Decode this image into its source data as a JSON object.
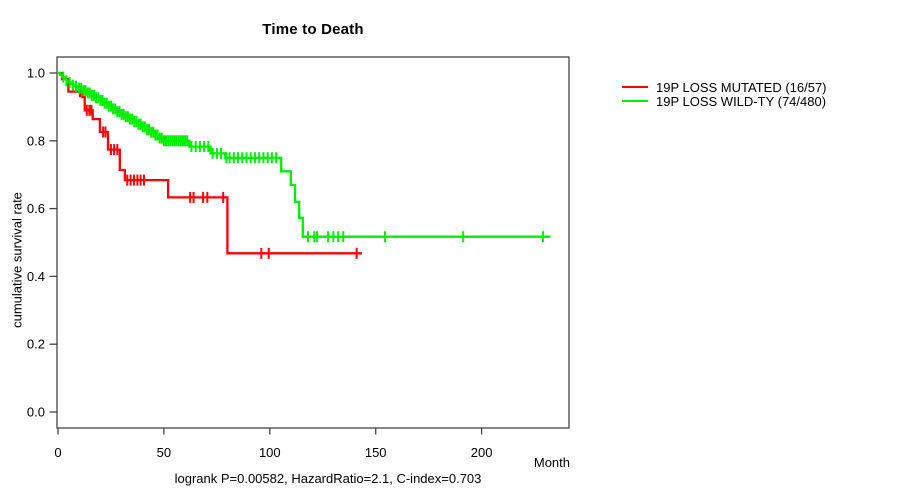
{
  "chart_data": {
    "type": "line",
    "subtype": "kaplan-meier-step",
    "title": "Time to Death",
    "xlabel": "Month",
    "ylabel": "cumulative survival rate",
    "annotation": "logrank P=0.00582, HazardRatio=2.1, C-index=0.703",
    "xlim": [
      0,
      240
    ],
    "ylim": [
      0.0,
      1.0
    ],
    "xticks": [
      0,
      50,
      100,
      150,
      200
    ],
    "xtick_labels": [
      "0",
      "50",
      "100",
      "150",
      "200"
    ],
    "yticks": [
      0.0,
      0.2,
      0.4,
      0.6,
      0.8,
      1.0
    ],
    "ytick_labels": [
      "0.0",
      "0.2",
      "0.4",
      "0.6",
      "0.8",
      "1.0"
    ],
    "grid": false,
    "legend_position": "right-outside",
    "axis_color": "#454545",
    "series": [
      {
        "name": "19P LOSS MUTATED (16/57)",
        "color": "#ff0000",
        "steps": [
          [
            0,
            1.0
          ],
          [
            1.9,
            0.982
          ],
          [
            4.9,
            0.945
          ],
          [
            11.5,
            0.929
          ],
          [
            12.6,
            0.89
          ],
          [
            16.4,
            0.864
          ],
          [
            19.8,
            0.826
          ],
          [
            23.6,
            0.774
          ],
          [
            29.2,
            0.714
          ],
          [
            31.6,
            0.684
          ],
          [
            52,
            0.633
          ],
          [
            80,
            0.468
          ],
          [
            143.5,
            0.468
          ]
        ],
        "censors": [
          10.4,
          13.6,
          14.8,
          15.8,
          21.3,
          22.4,
          25,
          26.5,
          28,
          32.7,
          34.3,
          35.9,
          37.5,
          39,
          40.6,
          62.4,
          64,
          68.5,
          70.5,
          78,
          96,
          99.5,
          141
        ]
      },
      {
        "name": "19P LOSS WILD-TY (74/480)",
        "color": "#00ee00",
        "steps": [
          [
            0,
            1.0
          ],
          [
            1,
            0.994
          ],
          [
            2,
            0.988
          ],
          [
            3,
            0.982
          ],
          [
            4,
            0.977
          ],
          [
            5,
            0.972
          ],
          [
            6,
            0.968
          ],
          [
            7,
            0.964
          ],
          [
            8,
            0.961
          ],
          [
            9,
            0.958
          ],
          [
            10,
            0.955
          ],
          [
            12,
            0.948
          ],
          [
            14,
            0.941
          ],
          [
            16,
            0.934
          ],
          [
            18,
            0.927
          ],
          [
            20,
            0.919
          ],
          [
            22,
            0.911
          ],
          [
            24,
            0.902
          ],
          [
            26,
            0.894
          ],
          [
            28,
            0.886
          ],
          [
            30,
            0.878
          ],
          [
            32,
            0.871
          ],
          [
            34,
            0.864
          ],
          [
            36,
            0.857
          ],
          [
            38,
            0.849
          ],
          [
            40,
            0.841
          ],
          [
            42,
            0.833
          ],
          [
            44,
            0.825
          ],
          [
            46,
            0.817
          ],
          [
            48,
            0.808
          ],
          [
            50,
            0.8
          ],
          [
            62,
            0.783
          ],
          [
            72,
            0.763
          ],
          [
            79,
            0.75
          ],
          [
            105.4,
            0.71
          ],
          [
            109.9,
            0.67
          ],
          [
            111.9,
            0.62
          ],
          [
            113.9,
            0.573
          ],
          [
            115.6,
            0.517
          ],
          [
            232.5,
            0.517
          ]
        ],
        "censors": [
          2.5,
          4,
          5.5,
          7,
          8.5,
          10,
          11,
          12,
          13,
          14,
          15,
          16,
          17,
          18,
          19,
          20,
          21,
          22,
          23,
          24,
          25,
          26,
          27,
          28,
          29,
          30,
          31,
          32,
          33,
          34,
          35,
          36,
          37,
          38,
          39,
          40,
          41,
          42,
          43,
          44,
          45,
          46,
          47,
          48,
          49,
          50,
          51,
          52,
          53,
          54,
          55,
          56,
          57,
          58,
          59,
          60,
          61,
          63,
          65,
          67,
          69,
          71,
          73,
          75,
          77,
          79.5,
          81,
          83,
          85,
          87,
          89,
          91,
          93,
          95,
          97,
          99,
          101,
          103,
          118,
          121,
          122.3,
          127.5,
          130,
          132.3,
          134.7,
          154.4,
          191.3,
          229
        ]
      }
    ]
  }
}
